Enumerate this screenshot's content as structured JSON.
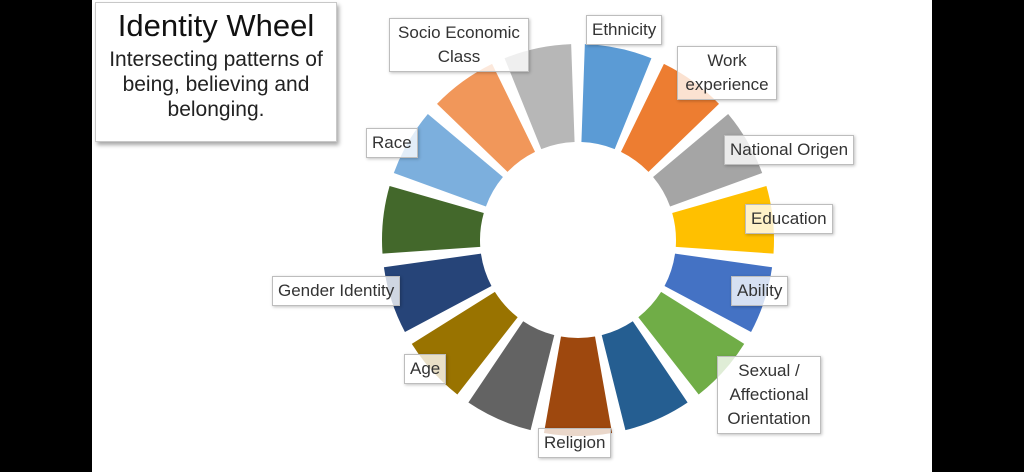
{
  "title": "Identity Wheel",
  "subtitle": "Intersecting patterns of being, believing and belonging.",
  "chart_data": {
    "type": "pie",
    "variant": "donut",
    "start": "top",
    "direction": "clockwise",
    "segments": [
      {
        "label": "Ethnicity",
        "value": 1,
        "color": "#5B9BD5"
      },
      {
        "label": "Work experience",
        "value": 1,
        "color": "#ED7D31"
      },
      {
        "label": "National Origen",
        "value": 1,
        "color": "#A5A5A5"
      },
      {
        "label": "Education",
        "value": 1,
        "color": "#FFC000"
      },
      {
        "label": "Ability",
        "value": 1,
        "color": "#4472C4"
      },
      {
        "label": "Sexual / Affectional Orientation",
        "value": 1,
        "color": "#70AD47"
      },
      {
        "label": "",
        "value": 1,
        "color": "#255E91"
      },
      {
        "label": "Religion",
        "value": 1,
        "color": "#9E480E"
      },
      {
        "label": "",
        "value": 1,
        "color": "#636363"
      },
      {
        "label": "Age",
        "value": 1,
        "color": "#997300"
      },
      {
        "label": "Gender Identity",
        "value": 1,
        "color": "#264478"
      },
      {
        "label": "",
        "value": 1,
        "color": "#43682B"
      },
      {
        "label": "Race",
        "value": 1,
        "color": "#7CAFDD"
      },
      {
        "label": "",
        "value": 1,
        "color": "#F1975A"
      },
      {
        "label": "Socio Economic Class",
        "value": 1,
        "color": "#B7B7B7"
      }
    ]
  }
}
